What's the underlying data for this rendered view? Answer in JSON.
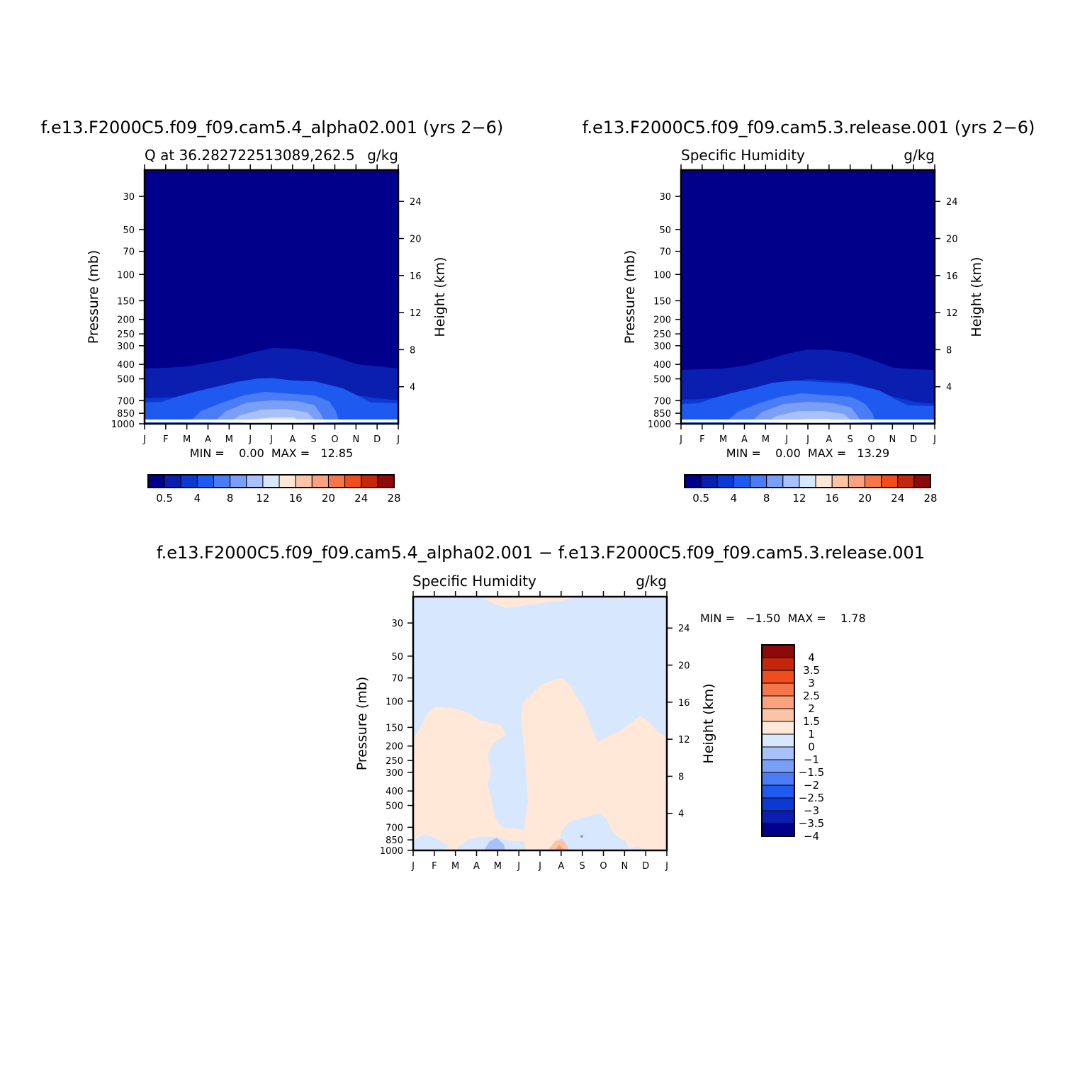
{
  "panels": [
    {
      "id": "test",
      "case_title": "f.e13.F2000C5.f09_f09.cam5.4_alpha02.001 (yrs 2−6)",
      "left_label": "Q at 36.282722513089,262.5",
      "units": "g/kg",
      "min_max": "MIN =    0.00  MAX =   12.85",
      "colorbar_labels": [
        "0.5",
        "4",
        "8",
        "12",
        "16",
        "20",
        "24",
        "28"
      ]
    },
    {
      "id": "control",
      "case_title": "f.e13.F2000C5.f09_f09.cam5.3.release.001 (yrs 2−6)",
      "left_label": "Specific Humidity",
      "units": "g/kg",
      "min_max": "MIN =    0.00  MAX =   13.29",
      "colorbar_labels": [
        "0.5",
        "4",
        "8",
        "12",
        "16",
        "20",
        "24",
        "28"
      ]
    },
    {
      "id": "difference",
      "case_title": "f.e13.F2000C5.f09_f09.cam5.4_alpha02.001 − f.e13.F2000C5.f09_f09.cam5.3.release.001",
      "left_label": "Specific Humidity",
      "units": "g/kg",
      "min_max": "MIN =   −1.50  MAX =    1.78",
      "colorbar_labels": [
        "4",
        "3.5",
        "3",
        "2.5",
        "2",
        "1.5",
        "1",
        "0",
        "−1",
        "−1.5",
        "−2",
        "−2.5",
        "−3",
        "−3.5",
        "−4"
      ]
    }
  ],
  "axes": {
    "xticks": [
      "J",
      "F",
      "M",
      "A",
      "M",
      "J",
      "J",
      "A",
      "S",
      "O",
      "N",
      "D",
      "J"
    ],
    "pressure_ticks": [
      "30",
      "50",
      "70",
      "100",
      "150",
      "200",
      "250",
      "300",
      "400",
      "500",
      "700",
      "850",
      "1000"
    ],
    "height_ticks": [
      "24",
      "20",
      "16",
      "12",
      "8",
      "4"
    ],
    "left_title": "Pressure (mb)",
    "right_title": "Height (km)"
  },
  "chart_data": [
    {
      "type": "heatmap",
      "panel": "test",
      "x": [
        "J",
        "F",
        "M",
        "A",
        "M",
        "J",
        "J",
        "A",
        "S",
        "O",
        "N",
        "D",
        "J"
      ],
      "y_axis": "pressure (mb), log scale",
      "ylim": [
        1000,
        20
      ],
      "levels": [
        0.5,
        2,
        4,
        6,
        8,
        10,
        12,
        14,
        16,
        18,
        20,
        22,
        24,
        26,
        28
      ],
      "colors": [
        "#00008b",
        "#0a1fb0",
        "#0a3ad2",
        "#1f5af0",
        "#4a7cf5",
        "#7a9ff7",
        "#a9c1fa",
        "#d7e7fd",
        "#ffe8d8",
        "#fcc4a7",
        "#f9a27d",
        "#f5764a",
        "#ef4d1d",
        "#c4260b",
        "#8c0a0a"
      ],
      "min": 0.0,
      "max": 12.85,
      "units": "g/kg"
    },
    {
      "type": "heatmap",
      "panel": "control",
      "x": [
        "J",
        "F",
        "M",
        "A",
        "M",
        "J",
        "J",
        "A",
        "S",
        "O",
        "N",
        "D",
        "J"
      ],
      "y_axis": "pressure (mb), log scale",
      "ylim": [
        1000,
        20
      ],
      "levels": [
        0.5,
        2,
        4,
        6,
        8,
        10,
        12,
        14,
        16,
        18,
        20,
        22,
        24,
        26,
        28
      ],
      "colors": [
        "#00008b",
        "#0a1fb0",
        "#0a3ad2",
        "#1f5af0",
        "#4a7cf5",
        "#7a9ff7",
        "#a9c1fa",
        "#d7e7fd",
        "#ffe8d8",
        "#fcc4a7",
        "#f9a27d",
        "#f5764a",
        "#ef4d1d",
        "#c4260b",
        "#8c0a0a"
      ],
      "min": 0.0,
      "max": 13.29,
      "units": "g/kg"
    },
    {
      "type": "heatmap",
      "panel": "difference",
      "x": [
        "J",
        "F",
        "M",
        "A",
        "M",
        "J",
        "J",
        "A",
        "S",
        "O",
        "N",
        "D",
        "J"
      ],
      "y_axis": "pressure (mb), log scale",
      "ylim": [
        1000,
        20
      ],
      "levels": [
        -4,
        -3.5,
        -3,
        -2.5,
        -2,
        -1.5,
        -1,
        0,
        1,
        1.5,
        2,
        2.5,
        3,
        3.5,
        4
      ],
      "colors": [
        "#00008b",
        "#0a1fb0",
        "#0a3ad2",
        "#1f5af0",
        "#4a7cf5",
        "#7a9ff7",
        "#a9c1fa",
        "#d7e7fd",
        "#ffe8d8",
        "#fcc4a7",
        "#f9a27d",
        "#f5764a",
        "#ef4d1d",
        "#c4260b",
        "#8c0a0a"
      ],
      "min": -1.5,
      "max": 1.78,
      "units": "g/kg"
    }
  ]
}
